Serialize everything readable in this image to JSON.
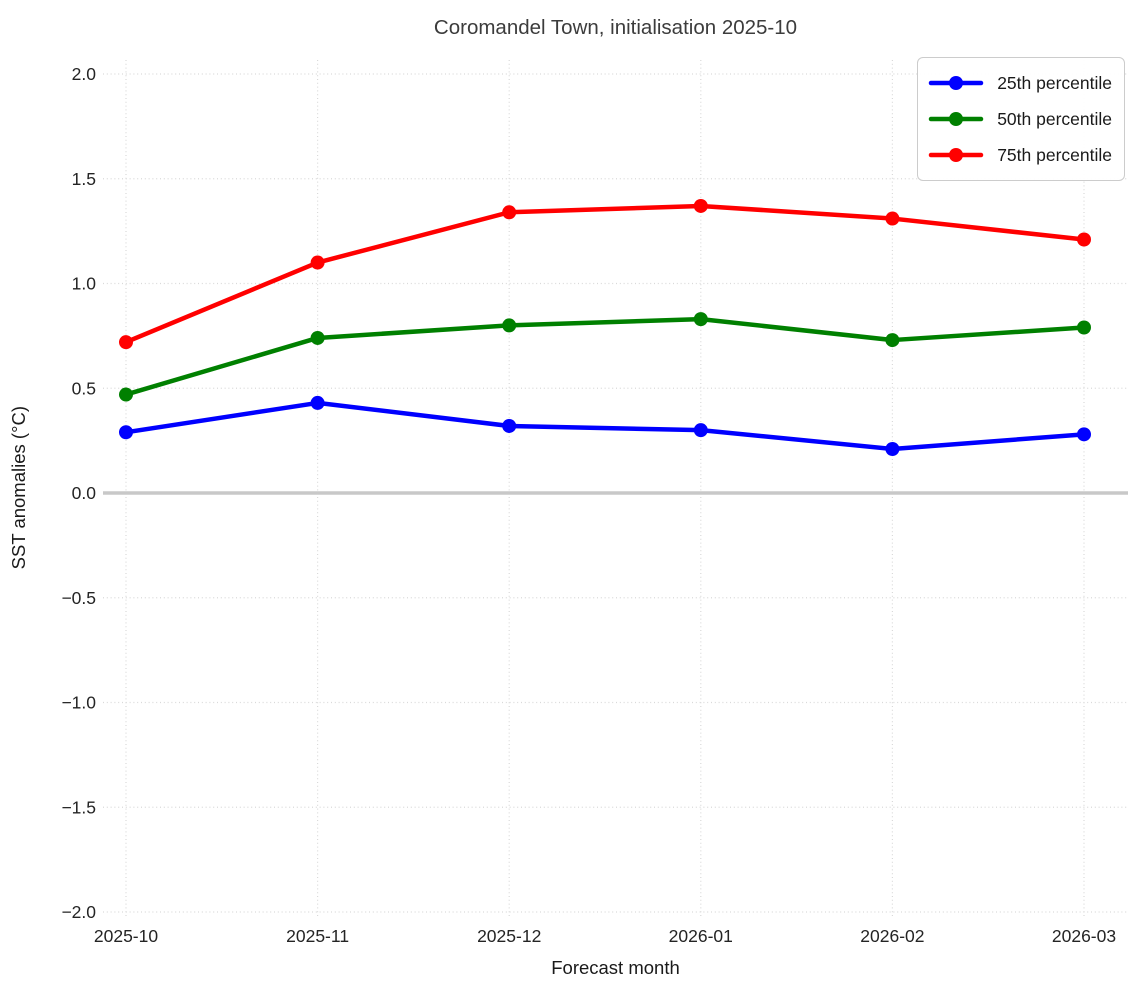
{
  "chart_data": {
    "type": "line",
    "title": "Coromandel Town, initialisation 2025-10",
    "xlabel": "Forecast month",
    "ylabel": "SST anomalies (°C)",
    "categories": [
      "2025-10",
      "2025-11",
      "2025-12",
      "2026-01",
      "2026-02",
      "2026-03"
    ],
    "series": [
      {
        "name": "25th percentile",
        "color": "#0000ff",
        "values": [
          0.29,
          0.43,
          0.32,
          0.3,
          0.21,
          0.28
        ]
      },
      {
        "name": "50th percentile",
        "color": "#008000",
        "values": [
          0.47,
          0.74,
          0.8,
          0.83,
          0.73,
          0.79
        ]
      },
      {
        "name": "75th percentile",
        "color": "#ff0000",
        "values": [
          0.72,
          1.1,
          1.34,
          1.37,
          1.31,
          1.21
        ]
      }
    ],
    "ylim": [
      -2.0,
      2.0
    ],
    "yticks": {
      "values": [
        2.0,
        1.5,
        1.0,
        0.5,
        0.0,
        -0.5,
        -1.0,
        -1.5,
        -2.0
      ],
      "labels": [
        "2.0",
        "1.5",
        "1.0",
        "0.5",
        "0.0",
        "−0.5",
        "−1.0",
        "−1.5",
        "−2.0"
      ]
    },
    "grid": "dotted",
    "legend_position": "upper right",
    "zero_line": true,
    "zero_line_color": "#c8c8c8",
    "background": "#ffffff"
  }
}
